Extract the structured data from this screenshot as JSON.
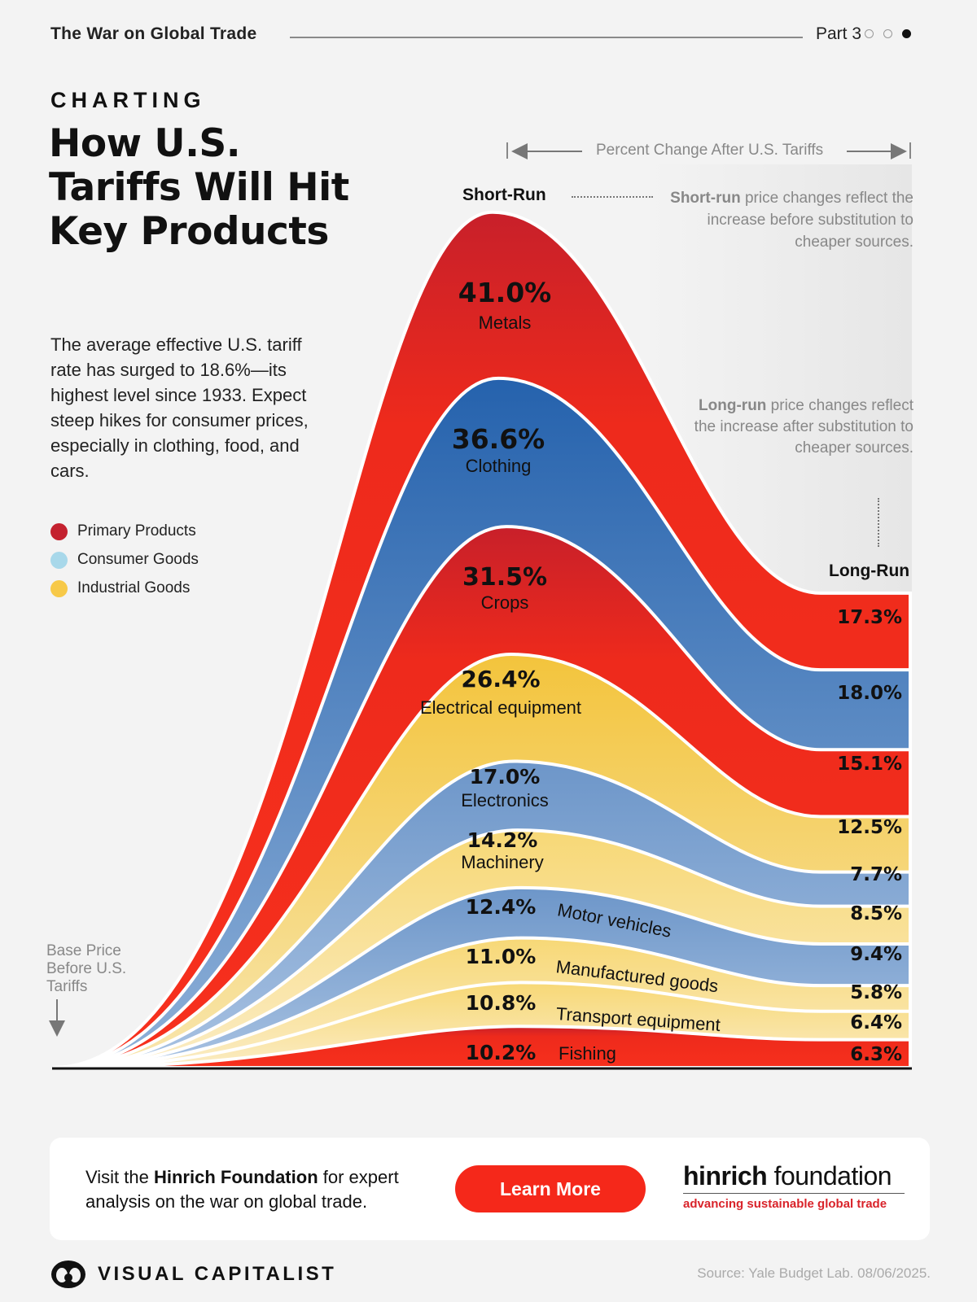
{
  "header": {
    "series_title": "The War on Global Trade",
    "part": "Part 3",
    "part_dots_total": 3,
    "part_active": 3
  },
  "kicker": "CHARTING",
  "title": "How U.S. Tariffs Will Hit Key Products",
  "description": "The average effective U.S. tariff rate has surged to 18.6%—its highest level since 1933. Expect steep hikes for consumer prices, especially in clothing, food, and cars.",
  "legend": [
    {
      "label": "Primary Products",
      "color": "#c4212f"
    },
    {
      "label": "Consumer Goods",
      "color": "#a8d8ea"
    },
    {
      "label": "Industrial Goods",
      "color": "#f7c948"
    }
  ],
  "annotations": {
    "axis_caption": "Percent Change After U.S. Tariffs",
    "short_run_title": "Short-Run",
    "short_run_bold": "Short-run",
    "short_run_note": " price changes reflect the increase before substitution to cheaper sources.",
    "long_run_title": "Long-Run",
    "long_run_bold": "Long-run",
    "long_run_note": " price changes reflect the increase after substitution to cheaper sources.",
    "base_label": "Base Price Before U.S. Tariffs"
  },
  "chart_data": {
    "type": "area",
    "categories": [
      "Metals",
      "Clothing",
      "Crops",
      "Electrical equipment",
      "Electronics",
      "Machinery",
      "Motor vehicles",
      "Manufactured goods",
      "Transport equipment",
      "Fishing"
    ],
    "group": [
      "Primary Products",
      "Consumer Goods",
      "Primary Products",
      "Industrial Goods",
      "Consumer Goods",
      "Industrial Goods",
      "Consumer Goods",
      "Industrial Goods",
      "Industrial Goods",
      "Primary Products"
    ],
    "short_run_labels": [
      "41.0%",
      "36.6%",
      "31.5%",
      "26.4%",
      "17.0%",
      "14.2%",
      "12.4%",
      "11.0%",
      "10.8%",
      "10.2%"
    ],
    "long_run_labels": [
      "17.3%",
      "18.0%",
      "15.1%",
      "12.5%",
      "7.7%",
      "8.5%",
      "9.4%",
      "5.8%",
      "6.4%",
      "6.3%"
    ],
    "short_run": [
      41.0,
      36.6,
      31.5,
      26.4,
      17.0,
      14.2,
      12.4,
      11.0,
      10.8,
      10.2
    ],
    "long_run": [
      17.3,
      18.0,
      15.1,
      12.5,
      7.7,
      8.5,
      9.4,
      5.8,
      6.4,
      6.3
    ],
    "stacked": true,
    "colors": {
      "primary": "#f5281a",
      "consumer": "#4a7dbf",
      "industrial": "#f8cc47"
    }
  },
  "cta": {
    "text_pre": "Visit the ",
    "text_bold": "Hinrich Foundation",
    "text_post": " for expert analysis on the war on global trade.",
    "button": "Learn More"
  },
  "partner_logo": {
    "name_bold": "hinrich",
    "name_light": " foundation",
    "tagline": "advancing sustainable global trade"
  },
  "footer": {
    "brand": "VISUAL CAPITALIST",
    "source": "Source: Yale Budget Lab. 08/06/2025."
  }
}
